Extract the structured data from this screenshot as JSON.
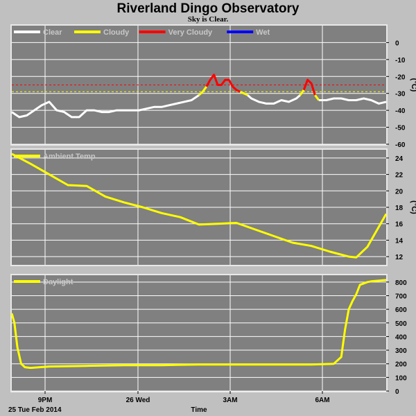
{
  "title": "Riverland Dingo Observatory",
  "subtitle": "Sky is Clear.",
  "x_axis": {
    "ticks": [
      "9PM",
      "26 Wed",
      "3AM",
      "6AM"
    ],
    "date_label": "25 Tue Feb 2014",
    "label": "Time"
  },
  "colors": {
    "background": "#c0c0c0",
    "plot_bg": "#808080",
    "grid": "#ffffff",
    "clear": "#ffffff",
    "cloudy": "#ffff00",
    "very_cloudy": "#ff0000",
    "wet": "#0000ff",
    "temp": "#ffff00",
    "daylight": "#ffff00"
  },
  "chart_data": [
    {
      "type": "line",
      "name": "sky",
      "ylabel": "(°C)",
      "ylim": [
        -60,
        10
      ],
      "yticks": [
        0,
        -10,
        -20,
        -30,
        -40,
        -50,
        -60
      ],
      "xlim": [
        0,
        100
      ],
      "grid": true,
      "legend": {
        "placement": "top-left",
        "entries": [
          {
            "label": "Clear",
            "color": "#ffffff"
          },
          {
            "label": "Cloudy",
            "color": "#ffff00"
          },
          {
            "label": "Very Cloudy",
            "color": "#ff0000"
          },
          {
            "label": "Wet",
            "color": "#0000ff"
          }
        ]
      },
      "thresholds": [
        {
          "value": -25,
          "color": "#ff0000"
        },
        {
          "value": -29,
          "color": "#ffff00"
        }
      ],
      "segments": [
        {
          "state": "clear",
          "color": "#ffffff",
          "x": [
            0,
            2,
            4,
            6,
            8,
            10,
            12,
            14,
            16,
            18,
            20,
            22,
            24,
            26,
            28,
            30,
            32,
            34,
            36,
            38,
            40,
            42,
            44,
            46,
            48,
            50
          ],
          "y": [
            -41,
            -44,
            -43,
            -40,
            -37,
            -35,
            -40,
            -41,
            -44,
            -44,
            -40,
            -40,
            -41,
            -41,
            -40,
            -40,
            -40,
            -40,
            -39,
            -38,
            -38,
            -37,
            -36,
            -35,
            -34,
            -31
          ]
        },
        {
          "state": "cloudy",
          "color": "#ffff00",
          "x": [
            50,
            51,
            52
          ],
          "y": [
            -31,
            -29,
            -26
          ]
        },
        {
          "state": "very_cloudy",
          "color": "#ff0000",
          "x": [
            52,
            53,
            54,
            55,
            56,
            57,
            58,
            59,
            60,
            61
          ],
          "y": [
            -26,
            -22,
            -19,
            -25,
            -25,
            -22,
            -22,
            -26,
            -28,
            -29
          ]
        },
        {
          "state": "cloudy",
          "color": "#ffff00",
          "x": [
            61,
            62,
            63
          ],
          "y": [
            -29,
            -30,
            -31
          ]
        },
        {
          "state": "clear",
          "color": "#ffffff",
          "x": [
            63,
            64,
            66,
            68,
            70,
            72,
            74,
            76,
            77
          ],
          "y": [
            -31,
            -33,
            -35,
            -36,
            -36,
            -34,
            -35,
            -33,
            -31
          ]
        },
        {
          "state": "cloudy",
          "color": "#ffff00",
          "x": [
            77,
            78
          ],
          "y": [
            -31,
            -28
          ]
        },
        {
          "state": "very_cloudy",
          "color": "#ff0000",
          "x": [
            78,
            79,
            80,
            81
          ],
          "y": [
            -28,
            -22,
            -24,
            -31
          ]
        },
        {
          "state": "cloudy",
          "color": "#ffff00",
          "x": [
            81,
            82
          ],
          "y": [
            -31,
            -34
          ]
        },
        {
          "state": "clear",
          "color": "#ffffff",
          "x": [
            82,
            84,
            86,
            88,
            90,
            92,
            94,
            96,
            98,
            100
          ],
          "y": [
            -34,
            -34,
            -33,
            -33,
            -34,
            -34,
            -33,
            -34,
            -36,
            -35
          ]
        }
      ]
    },
    {
      "type": "line",
      "name": "Ambient Temp",
      "ylabel": "(°C)",
      "ylim": [
        11,
        25
      ],
      "yticks": [
        12,
        14,
        16,
        18,
        20,
        22,
        24
      ],
      "xlim": [
        0,
        100
      ],
      "grid": true,
      "legend": {
        "placement": "top-left",
        "entries": [
          {
            "label": "Ambient Temp",
            "color": "#ffff00"
          }
        ]
      },
      "series": [
        {
          "name": "Ambient Temp",
          "color": "#ffff00",
          "x": [
            0,
            5,
            10,
            15,
            20,
            25,
            30,
            35,
            40,
            45,
            50,
            55,
            60,
            65,
            70,
            75,
            80,
            85,
            90,
            92,
            95,
            100
          ],
          "y": [
            24.5,
            23.3,
            22.0,
            20.7,
            20.6,
            19.3,
            18.6,
            18.0,
            17.3,
            16.8,
            15.9,
            16.0,
            16.1,
            15.3,
            14.5,
            13.7,
            13.3,
            12.6,
            12.0,
            11.9,
            13.2,
            17.2
          ]
        }
      ]
    },
    {
      "type": "line",
      "name": "Daylight",
      "ylim": [
        0,
        850
      ],
      "yticks": [
        0,
        100,
        200,
        300,
        400,
        500,
        600,
        700,
        800
      ],
      "xlim": [
        0,
        100
      ],
      "grid": true,
      "legend": {
        "placement": "top-left",
        "entries": [
          {
            "label": "Daylight",
            "color": "#ffff00"
          }
        ]
      },
      "series": [
        {
          "name": "Daylight",
          "color": "#ffff00",
          "x": [
            0,
            0.7,
            1.5,
            2.5,
            3.5,
            5,
            10,
            20,
            30,
            40,
            50,
            60,
            70,
            80,
            86,
            88,
            89,
            90,
            91,
            92,
            93,
            94,
            95,
            96,
            100
          ],
          "y": [
            570,
            500,
            320,
            200,
            175,
            170,
            180,
            185,
            190,
            190,
            195,
            195,
            195,
            195,
            200,
            250,
            450,
            600,
            660,
            710,
            780,
            790,
            800,
            805,
            815
          ]
        }
      ]
    }
  ]
}
